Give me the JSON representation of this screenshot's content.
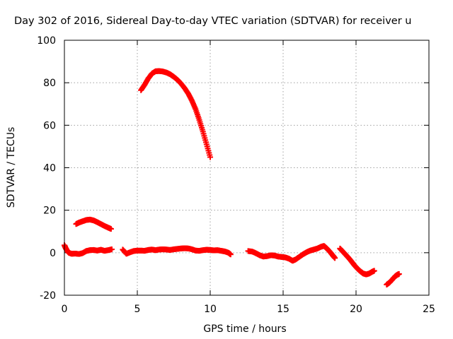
{
  "chart_data": {
    "type": "scatter",
    "title": "Day 302 of 2016, Sidereal Day-to-day VTEC variation (SDTVAR) for receiver u",
    "xlabel": "GPS time / hours",
    "ylabel": "SDTVAR / TECUs",
    "xlim": [
      0,
      25
    ],
    "ylim": [
      -20,
      100
    ],
    "x_ticks": [
      0,
      5,
      10,
      15,
      20,
      25
    ],
    "y_ticks": [
      -20,
      0,
      20,
      40,
      60,
      80,
      100
    ],
    "grid": true,
    "marker_color": "#ff0000",
    "series": [
      {
        "points": [
          [
            5.25,
            76.5
          ],
          [
            5.5,
            79
          ],
          [
            5.75,
            82
          ],
          [
            6.0,
            84.3
          ],
          [
            6.25,
            85.4
          ],
          [
            6.5,
            85.5
          ],
          [
            6.75,
            85.3
          ],
          [
            7.0,
            84.8
          ],
          [
            7.25,
            84.0
          ],
          [
            7.5,
            82.8
          ],
          [
            7.75,
            81.4
          ],
          [
            8.0,
            79.6
          ],
          [
            8.25,
            77.4
          ],
          [
            8.5,
            74.8
          ],
          [
            8.75,
            71.5
          ],
          [
            9.0,
            67.5
          ],
          [
            9.25,
            62.5
          ],
          [
            9.5,
            57.0
          ],
          [
            9.75,
            51.0
          ],
          [
            10.0,
            45.0
          ]
        ]
      },
      {
        "points": [
          [
            0.8,
            13.5
          ],
          [
            1.0,
            14.2
          ],
          [
            1.25,
            14.8
          ],
          [
            1.5,
            15.4
          ],
          [
            1.75,
            15.6
          ],
          [
            2.0,
            15.2
          ],
          [
            2.25,
            14.4
          ],
          [
            2.5,
            13.5
          ],
          [
            2.75,
            12.6
          ],
          [
            3.0,
            11.8
          ],
          [
            3.2,
            11.2
          ]
        ]
      },
      {
        "points": [
          [
            0.0,
            3.5
          ],
          [
            0.1,
            2.0
          ],
          [
            0.2,
            0.8
          ],
          [
            0.3,
            0.0
          ],
          [
            0.5,
            -0.5
          ],
          [
            0.75,
            -0.4
          ],
          [
            1.0,
            -0.6
          ],
          [
            1.25,
            -0.2
          ],
          [
            1.5,
            0.8
          ],
          [
            1.75,
            1.2
          ],
          [
            2.0,
            1.3
          ],
          [
            2.25,
            1.0
          ],
          [
            2.5,
            1.4
          ],
          [
            2.75,
            0.9
          ],
          [
            3.0,
            1.2
          ],
          [
            3.25,
            1.6
          ]
        ]
      },
      {
        "points": [
          [
            4.0,
            1.5
          ],
          [
            4.25,
            -0.5
          ],
          [
            4.5,
            0.2
          ],
          [
            4.75,
            0.8
          ],
          [
            5.0,
            1.0
          ],
          [
            5.25,
            1.0
          ],
          [
            5.5,
            0.9
          ],
          [
            5.75,
            1.3
          ],
          [
            6.0,
            1.5
          ],
          [
            6.25,
            1.2
          ],
          [
            6.5,
            1.5
          ],
          [
            6.75,
            1.6
          ],
          [
            7.0,
            1.5
          ],
          [
            7.25,
            1.3
          ],
          [
            7.5,
            1.6
          ],
          [
            7.75,
            1.8
          ],
          [
            8.0,
            2.0
          ],
          [
            8.25,
            2.1
          ],
          [
            8.5,
            2.0
          ],
          [
            8.75,
            1.6
          ],
          [
            9.0,
            1.0
          ],
          [
            9.25,
            0.9
          ],
          [
            9.5,
            1.2
          ],
          [
            9.75,
            1.4
          ],
          [
            10.0,
            1.3
          ],
          [
            10.25,
            1.1
          ],
          [
            10.5,
            1.2
          ],
          [
            10.75,
            0.9
          ],
          [
            11.0,
            0.6
          ],
          [
            11.25,
            0.0
          ],
          [
            11.4,
            -0.8
          ]
        ]
      },
      {
        "points": [
          [
            12.6,
            0.8
          ],
          [
            12.9,
            0.5
          ],
          [
            13.15,
            -0.3
          ],
          [
            13.4,
            -1.2
          ],
          [
            13.65,
            -1.8
          ],
          [
            13.9,
            -1.6
          ],
          [
            14.15,
            -1.2
          ],
          [
            14.4,
            -1.3
          ],
          [
            14.65,
            -1.8
          ],
          [
            14.9,
            -2.0
          ],
          [
            15.15,
            -2.2
          ],
          [
            15.4,
            -2.8
          ],
          [
            15.65,
            -3.8
          ],
          [
            15.85,
            -3.2
          ],
          [
            16.1,
            -2.0
          ],
          [
            16.35,
            -0.8
          ],
          [
            16.6,
            0.2
          ],
          [
            16.85,
            1.0
          ],
          [
            17.1,
            1.5
          ],
          [
            17.35,
            2.0
          ],
          [
            17.6,
            2.8
          ],
          [
            17.8,
            3.2
          ],
          [
            18.0,
            2.0
          ],
          [
            18.2,
            0.5
          ],
          [
            18.4,
            -1.2
          ],
          [
            18.55,
            -2.5
          ]
        ]
      },
      {
        "points": [
          [
            18.9,
            2.0
          ],
          [
            19.1,
            0.5
          ],
          [
            19.3,
            -1.0
          ],
          [
            19.5,
            -2.5
          ],
          [
            19.7,
            -4.2
          ],
          [
            19.9,
            -6.0
          ],
          [
            20.1,
            -7.5
          ],
          [
            20.3,
            -8.8
          ],
          [
            20.5,
            -9.8
          ],
          [
            20.7,
            -10.2
          ],
          [
            20.9,
            -9.8
          ],
          [
            21.1,
            -9.0
          ],
          [
            21.25,
            -8.5
          ]
        ]
      },
      {
        "points": [
          [
            22.1,
            -15.0
          ],
          [
            22.3,
            -14.0
          ],
          [
            22.5,
            -12.5
          ],
          [
            22.7,
            -11.0
          ],
          [
            22.85,
            -10.3
          ],
          [
            22.95,
            -10.0
          ]
        ]
      }
    ]
  }
}
